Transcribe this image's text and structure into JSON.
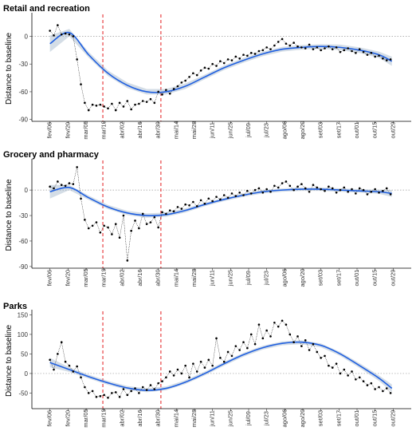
{
  "chart_data": [
    {
      "type": "scatter",
      "title": "Retail and recreation",
      "ylabel": "Distance to baseline",
      "xlabel": "",
      "x_ticks": [
        "fev/06",
        "fev/20",
        "mar/05",
        "mar/19",
        "abr/02",
        "abr/16",
        "abr/30",
        "mai/14",
        "mai/28",
        "jun/11",
        "jun/25",
        "jul/09",
        "jul/23",
        "ago/06",
        "ago/20",
        "set/03",
        "set/17",
        "out/01",
        "out/15",
        "out/29"
      ],
      "y_ticks": [
        0,
        -30,
        -60,
        -90
      ],
      "ylim": [
        -92,
        22
      ],
      "reference_line_y": 0,
      "event_lines_day": [
        41,
        86
      ],
      "grid": false,
      "smooth": {
        "series": "LOESS fit with confidence band",
        "x": [
          0,
          15,
          30,
          45,
          60,
          75,
          90,
          105,
          120,
          135,
          150,
          165,
          180,
          195,
          210,
          225,
          240,
          255,
          265
        ],
        "y": [
          -8,
          4,
          -20,
          -40,
          -53,
          -60,
          -60,
          -54,
          -44,
          -34,
          -26,
          -19,
          -14,
          -12,
          -11,
          -12,
          -15,
          -20,
          -27
        ]
      },
      "band": [
        9,
        4,
        3,
        3,
        3,
        3,
        3,
        3,
        2.5,
        2.5,
        2.5,
        2.5,
        2.5,
        2.5,
        2.5,
        3,
        3,
        3.5,
        5
      ],
      "points_x": [
        0,
        3,
        6,
        9,
        12,
        15,
        18,
        21,
        24,
        27,
        30,
        33,
        36,
        39,
        42,
        45,
        48,
        51,
        54,
        57,
        60,
        63,
        66,
        69,
        72,
        75,
        78,
        81,
        84,
        87,
        90,
        93,
        96,
        99,
        102,
        105,
        108,
        111,
        114,
        117,
        120,
        123,
        126,
        129,
        132,
        135,
        138,
        141,
        144,
        147,
        150,
        153,
        156,
        159,
        162,
        165,
        168,
        171,
        174,
        177,
        180,
        183,
        186,
        189,
        192,
        195,
        198,
        201,
        204,
        207,
        210,
        213,
        216,
        219,
        222,
        225,
        228,
        231,
        234,
        237,
        240,
        243,
        246,
        249,
        252,
        255,
        258,
        261,
        264
      ],
      "points_y": [
        6,
        1,
        12,
        2,
        3,
        2,
        0,
        -25,
        -52,
        -72,
        -80,
        -74,
        -75,
        -74,
        -76,
        -78,
        -73,
        -80,
        -72,
        -76,
        -70,
        -79,
        -74,
        -73,
        -70,
        -71,
        -68,
        -72,
        -60,
        -63,
        -58,
        -62,
        -57,
        -54,
        -50,
        -48,
        -44,
        -40,
        -42,
        -37,
        -34,
        -35,
        -30,
        -32,
        -27,
        -29,
        -25,
        -26,
        -22,
        -24,
        -20,
        -21,
        -18,
        -19,
        -16,
        -15,
        -12,
        -14,
        -10,
        -6,
        -3,
        -8,
        -10,
        -7,
        -11,
        -12,
        -13,
        -9,
        -14,
        -12,
        -15,
        -13,
        -11,
        -14,
        -12,
        -17,
        -15,
        -13,
        -16,
        -18,
        -14,
        -17,
        -20,
        -18,
        -22,
        -21,
        -24,
        -26,
        -25
      ]
    },
    {
      "type": "scatter",
      "title": "Grocery and pharmacy",
      "ylabel": "Distance to baseline",
      "xlabel": "",
      "x_ticks": [
        "fev/06",
        "fev/20",
        "mar/05",
        "mar/19",
        "abr/02",
        "abr/16",
        "abr/30",
        "mai/14",
        "mai/28",
        "jun/11",
        "jun/25",
        "jul/09",
        "jul/23",
        "ago/06",
        "ago/20",
        "set/03",
        "set/17",
        "out/01",
        "out/15",
        "out/29"
      ],
      "y_ticks": [
        0,
        -30,
        -60,
        -90
      ],
      "ylim": [
        -92,
        33
      ],
      "reference_line_y": 0,
      "event_lines_day": [
        41,
        86
      ],
      "grid": false,
      "smooth": {
        "series": "LOESS fit with confidence band",
        "x": [
          0,
          15,
          30,
          45,
          60,
          75,
          90,
          105,
          120,
          135,
          150,
          165,
          180,
          195,
          210,
          225,
          240,
          255,
          265
        ],
        "y": [
          -2,
          3,
          -9,
          -20,
          -27,
          -30,
          -29,
          -24,
          -17,
          -11,
          -6,
          -2,
          0,
          1,
          1,
          0,
          -1,
          -2,
          -4
        ]
      },
      "band": [
        8,
        3,
        2.5,
        2.5,
        2.5,
        2.5,
        2.5,
        2.5,
        2,
        2,
        2,
        2,
        2,
        2,
        2,
        2,
        2,
        2.5,
        4
      ],
      "points_x": [
        0,
        3,
        6,
        9,
        12,
        15,
        18,
        21,
        24,
        27,
        30,
        33,
        36,
        39,
        42,
        45,
        48,
        51,
        54,
        57,
        60,
        63,
        66,
        69,
        72,
        75,
        78,
        81,
        84,
        87,
        90,
        93,
        96,
        99,
        102,
        105,
        108,
        111,
        114,
        117,
        120,
        123,
        126,
        129,
        132,
        135,
        138,
        141,
        144,
        147,
        150,
        153,
        156,
        159,
        162,
        165,
        168,
        171,
        174,
        177,
        180,
        183,
        186,
        189,
        192,
        195,
        198,
        201,
        204,
        207,
        210,
        213,
        216,
        219,
        222,
        225,
        228,
        231,
        234,
        237,
        240,
        243,
        246,
        249,
        252,
        255,
        258,
        261,
        264
      ],
      "points_y": [
        4,
        2,
        10,
        6,
        5,
        8,
        7,
        27,
        -10,
        -35,
        -45,
        -42,
        -38,
        -50,
        -42,
        -44,
        -52,
        -40,
        -56,
        -30,
        -83,
        -48,
        -36,
        -45,
        -28,
        -40,
        -38,
        -32,
        -44,
        -26,
        -28,
        -24,
        -25,
        -20,
        -22,
        -17,
        -18,
        -14,
        -19,
        -12,
        -16,
        -10,
        -13,
        -8,
        -11,
        -6,
        -9,
        -4,
        -7,
        -3,
        -6,
        -1,
        -4,
        0,
        2,
        -3,
        1,
        -2,
        5,
        3,
        8,
        10,
        5,
        0,
        4,
        7,
        2,
        -2,
        6,
        3,
        1,
        -1,
        4,
        2,
        -3,
        0,
        3,
        -2,
        1,
        -4,
        2,
        0,
        -5,
        -2,
        1,
        -3,
        -1,
        2,
        -5
      ]
    },
    {
      "type": "scatter",
      "title": "Parks",
      "ylabel": "Distance to baseline",
      "xlabel": "",
      "x_ticks": [
        "fev/06",
        "fev/20",
        "mar/05",
        "mar/19",
        "abr/02",
        "abr/16",
        "abr/30",
        "mai/14",
        "mai/28",
        "jun/11",
        "jun/25",
        "jul/09",
        "jul/23",
        "ago/06",
        "ago/20",
        "set/03",
        "set/17",
        "out/01",
        "out/15",
        "out/29"
      ],
      "y_ticks": [
        150,
        100,
        50,
        0,
        -50
      ],
      "ylim": [
        -90,
        155
      ],
      "reference_line_y": 0,
      "event_lines_day": [
        41,
        86
      ],
      "grid": false,
      "smooth": {
        "series": "LOESS fit with confidence band",
        "x": [
          0,
          15,
          30,
          45,
          60,
          75,
          90,
          105,
          120,
          135,
          150,
          165,
          180,
          195,
          210,
          225,
          240,
          255,
          265
        ],
        "y": [
          28,
          10,
          -8,
          -24,
          -37,
          -43,
          -38,
          -22,
          0,
          25,
          48,
          66,
          77,
          80,
          72,
          50,
          20,
          -12,
          -38
        ]
      },
      "band": [
        12,
        6,
        5,
        5,
        5,
        5,
        5,
        5,
        5,
        5,
        5,
        5,
        5,
        5,
        5,
        5,
        6,
        7,
        10
      ],
      "points_x": [
        0,
        3,
        6,
        9,
        12,
        15,
        18,
        21,
        24,
        27,
        30,
        33,
        36,
        39,
        42,
        45,
        48,
        51,
        54,
        57,
        60,
        63,
        66,
        69,
        72,
        75,
        78,
        81,
        84,
        87,
        90,
        93,
        96,
        99,
        102,
        105,
        108,
        111,
        114,
        117,
        120,
        123,
        126,
        129,
        132,
        135,
        138,
        141,
        144,
        147,
        150,
        153,
        156,
        159,
        162,
        165,
        168,
        171,
        174,
        177,
        180,
        183,
        186,
        189,
        192,
        195,
        198,
        201,
        204,
        207,
        210,
        213,
        216,
        219,
        222,
        225,
        228,
        231,
        234,
        237,
        240,
        243,
        246,
        249,
        252,
        255,
        258,
        261,
        264
      ],
      "points_y": [
        35,
        10,
        50,
        80,
        30,
        20,
        5,
        18,
        -10,
        -35,
        -50,
        -45,
        -60,
        -58,
        -55,
        -62,
        -50,
        -48,
        -60,
        -40,
        -55,
        -45,
        -38,
        -50,
        -35,
        -42,
        -30,
        -40,
        -25,
        -20,
        -10,
        5,
        -5,
        10,
        0,
        20,
        -10,
        25,
        5,
        30,
        15,
        35,
        20,
        90,
        40,
        30,
        55,
        45,
        70,
        60,
        80,
        65,
        100,
        75,
        125,
        90,
        110,
        95,
        130,
        120,
        135,
        125,
        100,
        80,
        95,
        70,
        85,
        60,
        75,
        55,
        40,
        45,
        20,
        15,
        25,
        0,
        10,
        -5,
        5,
        -15,
        -10,
        -20,
        -30,
        -25,
        -40,
        -35,
        -45,
        -38,
        -50
      ]
    }
  ]
}
